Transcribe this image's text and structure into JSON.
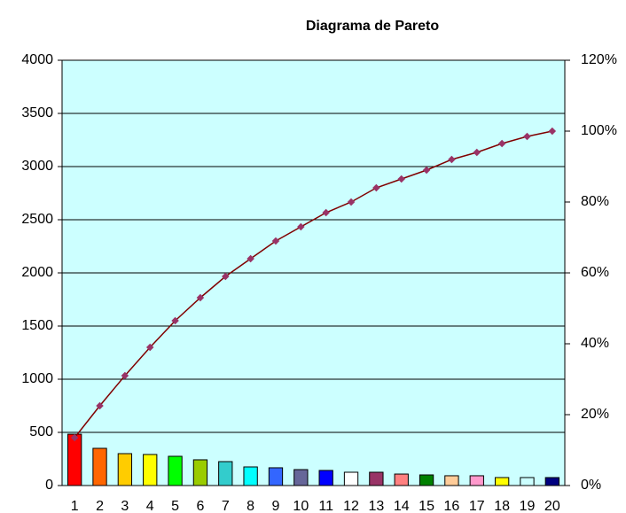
{
  "chart_data": {
    "type": "pareto",
    "title": "Diagrama de Pareto",
    "categories": [
      "1",
      "2",
      "3",
      "4",
      "5",
      "6",
      "7",
      "8",
      "9",
      "10",
      "11",
      "12",
      "13",
      "14",
      "15",
      "16",
      "17",
      "18",
      "19",
      "20"
    ],
    "series": [
      {
        "type": "bar",
        "colors": [
          "#ff0000",
          "#ff6600",
          "#ffcc00",
          "#ffff00",
          "#00ff00",
          "#99cc00",
          "#33cccc",
          "#00ffff",
          "#3366ff",
          "#666699",
          "#0000ff",
          "#ffffff",
          "#993366",
          "#ff8080",
          "#008000",
          "#ffcc99",
          "#ff99cc",
          "#ffff00",
          "#ccffff",
          "#000080"
        ],
        "values": [
          483,
          350,
          300,
          292,
          275,
          242,
          225,
          175,
          167,
          150,
          142,
          125,
          125,
          108,
          100,
          92,
          92,
          75,
          75,
          75
        ]
      },
      {
        "type": "line",
        "axis": "y2",
        "color": "#800000",
        "marker_color": "#993366",
        "values": [
          13.5,
          22.5,
          31,
          39,
          46.5,
          53,
          59,
          64,
          69,
          73,
          77,
          80,
          84,
          86.5,
          89,
          92,
          94,
          96.5,
          98.5,
          100
        ]
      }
    ],
    "ylim": [
      0,
      4000
    ],
    "yticks": [
      0,
      500,
      1000,
      1500,
      2000,
      2500,
      3000,
      3500,
      4000
    ],
    "y2lim": [
      0,
      120
    ],
    "y2ticks": [
      {
        "value": 0,
        "label": "0%"
      },
      {
        "value": 20,
        "label": "20%"
      },
      {
        "value": 40,
        "label": "40%"
      },
      {
        "value": 60,
        "label": "60%"
      },
      {
        "value": 80,
        "label": "80%"
      },
      {
        "value": 100,
        "label": "100%"
      },
      {
        "value": 120,
        "label": "120%"
      }
    ],
    "grid": true,
    "plot_background": "#ccffff"
  }
}
